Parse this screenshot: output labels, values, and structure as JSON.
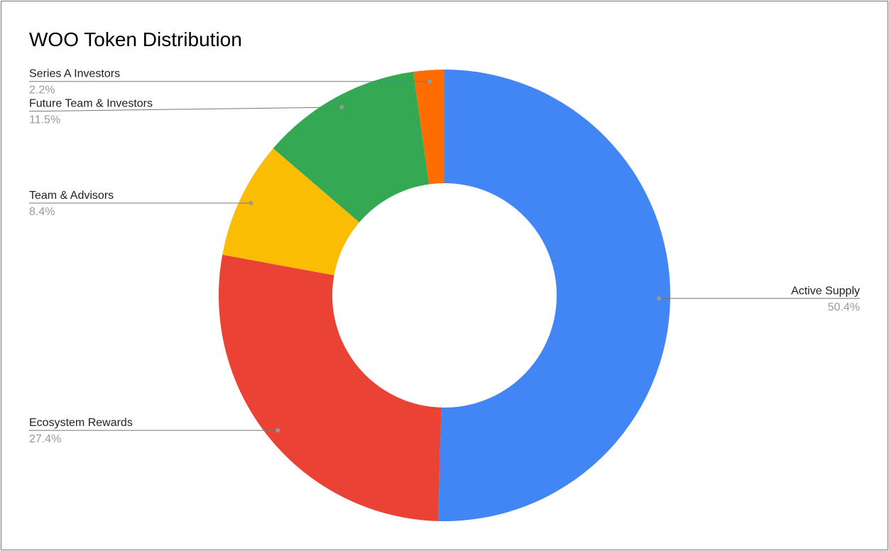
{
  "chart_data": {
    "type": "donut",
    "title": "WOO Token Distribution",
    "categories": [
      "Active Supply",
      "Ecosystem Rewards",
      "Team & Advisors",
      "Future Team & Investors",
      "Series A Investors"
    ],
    "values": [
      50.4,
      27.4,
      8.4,
      11.5,
      2.2
    ],
    "value_labels": [
      "50.4%",
      "27.4%",
      "8.4%",
      "11.5%",
      "2.2%"
    ],
    "colors": [
      "#4285f4",
      "#ea4335",
      "#fbbc04",
      "#34a853",
      "#ff6d01"
    ]
  }
}
